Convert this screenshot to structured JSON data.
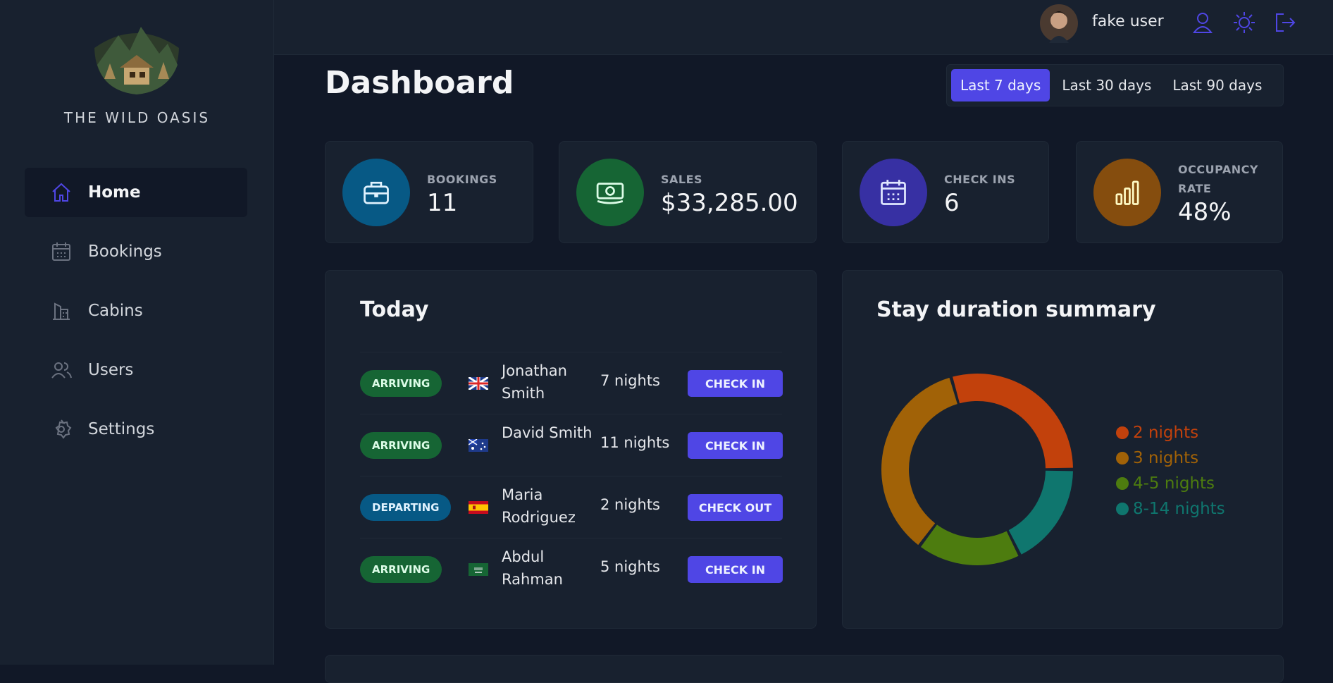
{
  "header": {
    "user_name": "fake user"
  },
  "sidebar": {
    "logo_text": "THE WILD OASIS",
    "nav": [
      "Home",
      "Bookings",
      "Cabins",
      "Users",
      "Settings"
    ]
  },
  "dashboard": {
    "title": "Dashboard",
    "filters": [
      "Last 7 days",
      "Last 30 days",
      "Last 90 days"
    ]
  },
  "stats": [
    {
      "label": "BOOKINGS",
      "value": "11"
    },
    {
      "label": "SALES",
      "value": "$33,285.00"
    },
    {
      "label": "CHECK INS",
      "value": "6"
    },
    {
      "label": "OCCUPANCY RATE",
      "value": "48%"
    }
  ],
  "today": {
    "title": "Today",
    "rows": [
      {
        "status": "ARRIVING",
        "guest": "Jonathan Smith",
        "nights": "7 nights",
        "action": "CHECK IN"
      },
      {
        "status": "ARRIVING",
        "guest": "David Smith",
        "nights": "11 nights",
        "action": "CHECK IN"
      },
      {
        "status": "DEPARTING",
        "guest": "Maria Rodriguez",
        "nights": "2 nights",
        "action": "CHECK OUT"
      },
      {
        "status": "ARRIVING",
        "guest": "Abdul Rahman",
        "nights": "5 nights",
        "action": "CHECK IN"
      }
    ]
  },
  "chart_data": {
    "type": "pie",
    "donut": true,
    "title": "Stay duration summary",
    "categories": [
      "2 nights",
      "3 nights",
      "4-5 nights",
      "8-14 nights"
    ],
    "values": [
      5,
      6,
      3,
      3
    ],
    "colors": [
      "#c2410c",
      "#a16207",
      "#4d7c0f",
      "#0f766e"
    ]
  }
}
